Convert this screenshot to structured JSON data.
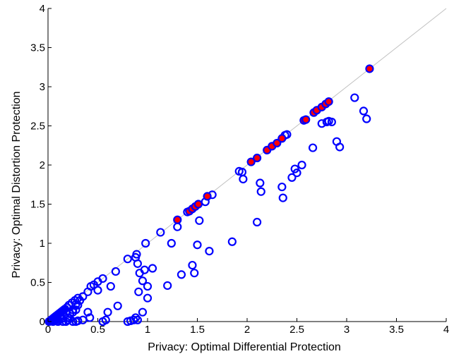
{
  "chart_data": {
    "type": "scatter",
    "title": "",
    "xlabel": "Privacy: Optimal Differential Protection",
    "ylabel": "Privacy: Optimal Distortion Protection",
    "xlim": [
      0,
      4
    ],
    "ylim": [
      0,
      4
    ],
    "xticks": [
      "0",
      "0.5",
      "1",
      "1.5",
      "2",
      "2.5",
      "3",
      "3.5",
      "4"
    ],
    "yticks": [
      "0",
      "0.5",
      "1",
      "1.5",
      "2",
      "2.5",
      "3",
      "3.5",
      "4"
    ],
    "grid": false,
    "legend": "none",
    "reference_line": {
      "from": [
        0,
        0
      ],
      "to": [
        4,
        4
      ],
      "color": "#c0c0c0"
    },
    "colors": {
      "marker": "#0000ff",
      "highlight": "#ff0000"
    },
    "series": [
      {
        "marker": "open-circle",
        "points": [
          [
            0.01,
            0.0
          ],
          [
            0.02,
            0.01
          ],
          [
            0.03,
            0.02
          ],
          [
            0.04,
            0.03
          ],
          [
            0.05,
            0.04
          ],
          [
            0.06,
            0.05
          ],
          [
            0.07,
            0.06
          ],
          [
            0.08,
            0.07
          ],
          [
            0.09,
            0.08
          ],
          [
            0.1,
            0.09
          ],
          [
            0.11,
            0.1
          ],
          [
            0.12,
            0.11
          ],
          [
            0.13,
            0.12
          ],
          [
            0.14,
            0.13
          ],
          [
            0.15,
            0.14
          ],
          [
            0.16,
            0.15
          ],
          [
            0.17,
            0.16
          ],
          [
            0.04,
            0.01
          ],
          [
            0.06,
            0.02
          ],
          [
            0.08,
            0.03
          ],
          [
            0.1,
            0.02
          ],
          [
            0.12,
            0.05
          ],
          [
            0.14,
            0.04
          ],
          [
            0.05,
            0.0
          ],
          [
            0.1,
            0.0
          ],
          [
            0.15,
            0.0
          ],
          [
            0.2,
            0.02
          ],
          [
            0.25,
            0.0
          ],
          [
            0.28,
            0.0
          ],
          [
            0.3,
            0.01
          ],
          [
            0.35,
            0.02
          ],
          [
            0.18,
            0.0
          ],
          [
            0.22,
            0.04
          ],
          [
            0.2,
            0.05
          ],
          [
            0.22,
            0.1
          ],
          [
            0.25,
            0.15
          ],
          [
            0.28,
            0.22
          ],
          [
            0.3,
            0.21
          ],
          [
            0.32,
            0.27
          ],
          [
            0.35,
            0.32
          ],
          [
            0.4,
            0.38
          ],
          [
            0.43,
            0.45
          ],
          [
            0.46,
            0.47
          ],
          [
            0.5,
            0.51
          ],
          [
            0.55,
            0.55
          ],
          [
            0.3,
            0.3
          ],
          [
            0.27,
            0.27
          ],
          [
            0.24,
            0.24
          ],
          [
            0.21,
            0.21
          ],
          [
            0.19,
            0.18
          ],
          [
            0.25,
            0.12
          ],
          [
            0.28,
            0.15
          ],
          [
            0.4,
            0.12
          ],
          [
            0.42,
            0.05
          ],
          [
            0.55,
            0.0
          ],
          [
            0.58,
            0.02
          ],
          [
            0.6,
            0.12
          ],
          [
            0.63,
            0.45
          ],
          [
            0.7,
            0.2
          ],
          [
            0.5,
            0.4
          ],
          [
            0.68,
            0.64
          ],
          [
            0.8,
            0.8
          ],
          [
            0.88,
            0.82
          ],
          [
            0.89,
            0.86
          ],
          [
            0.9,
            0.74
          ],
          [
            0.92,
            0.62
          ],
          [
            0.95,
            0.52
          ],
          [
            0.97,
            0.66
          ],
          [
            1.0,
            0.45
          ],
          [
            1.05,
            0.68
          ],
          [
            0.98,
            1.0
          ],
          [
            0.8,
            0.0
          ],
          [
            0.83,
            0.01
          ],
          [
            0.86,
            0.02
          ],
          [
            0.88,
            0.05
          ],
          [
            0.9,
            0.02
          ],
          [
            0.91,
            0.38
          ],
          [
            0.95,
            0.12
          ],
          [
            1.0,
            0.3
          ],
          [
            1.13,
            1.14
          ],
          [
            1.2,
            0.46
          ],
          [
            1.24,
            1.0
          ],
          [
            1.3,
            1.21
          ],
          [
            1.34,
            0.6
          ],
          [
            1.4,
            1.4
          ],
          [
            1.45,
            0.72
          ],
          [
            1.47,
            0.62
          ],
          [
            1.5,
            0.98
          ],
          [
            1.52,
            1.29
          ],
          [
            1.58,
            1.53
          ],
          [
            1.62,
            0.9
          ],
          [
            1.65,
            1.62
          ],
          [
            1.85,
            1.02
          ],
          [
            1.92,
            1.92
          ],
          [
            1.95,
            1.91
          ],
          [
            1.96,
            1.82
          ],
          [
            2.1,
            1.27
          ],
          [
            2.13,
            1.77
          ],
          [
            2.14,
            1.66
          ],
          [
            2.35,
            1.72
          ],
          [
            2.36,
            1.58
          ],
          [
            2.38,
            2.38
          ],
          [
            2.4,
            2.39
          ],
          [
            2.45,
            1.84
          ],
          [
            2.48,
            1.95
          ],
          [
            2.5,
            1.9
          ],
          [
            2.55,
            2.0
          ],
          [
            2.66,
            2.22
          ],
          [
            2.75,
            2.53
          ],
          [
            2.8,
            2.55
          ],
          [
            2.82,
            2.56
          ],
          [
            2.85,
            2.55
          ],
          [
            2.9,
            2.3
          ],
          [
            2.93,
            2.23
          ],
          [
            3.08,
            2.86
          ],
          [
            3.17,
            2.69
          ],
          [
            3.2,
            2.59
          ]
        ]
      },
      {
        "marker": "filled-circle",
        "points": [
          [
            1.3,
            1.3
          ],
          [
            1.42,
            1.41
          ],
          [
            1.45,
            1.44
          ],
          [
            1.48,
            1.47
          ],
          [
            1.51,
            1.5
          ],
          [
            1.6,
            1.6
          ],
          [
            2.04,
            2.04
          ],
          [
            2.1,
            2.09
          ],
          [
            2.2,
            2.19
          ],
          [
            2.25,
            2.24
          ],
          [
            2.3,
            2.28
          ],
          [
            2.35,
            2.34
          ],
          [
            2.57,
            2.57
          ],
          [
            2.59,
            2.58
          ],
          [
            2.67,
            2.67
          ],
          [
            2.7,
            2.7
          ],
          [
            2.75,
            2.74
          ],
          [
            2.79,
            2.78
          ],
          [
            2.82,
            2.81
          ],
          [
            3.23,
            3.23
          ]
        ]
      }
    ]
  }
}
